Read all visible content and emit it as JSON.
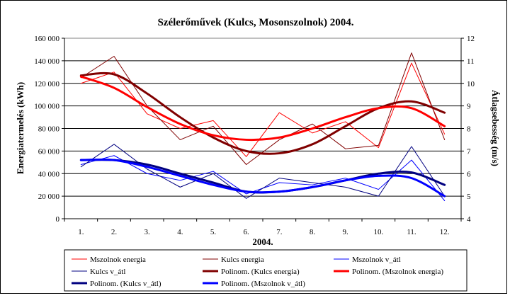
{
  "chart_data": {
    "type": "line",
    "title": "Szélerőművek (Kulcs, Mosonszolnok) 2004.",
    "xlabel": "2004.",
    "ylabel_left": "Energiatermelés (kWh)",
    "ylabel_right": "Átlagsebesség (m/s)",
    "categories": [
      "1.",
      "2.",
      "3.",
      "4.",
      "5.",
      "6.",
      "7.",
      "8.",
      "9.",
      "10.",
      "11.",
      "12."
    ],
    "ylim_left": [
      0,
      160000
    ],
    "yticks_left": [
      "0",
      "20 000",
      "40 000",
      "60 000",
      "80 000",
      "100 000",
      "120 000",
      "140 000",
      "160 000"
    ],
    "ylim_right": [
      4,
      12
    ],
    "yticks_right": [
      "4",
      "5",
      "6",
      "7",
      "8",
      "9",
      "10",
      "11",
      "12"
    ],
    "grid": "horizontal",
    "legend_position": "bottom",
    "series": [
      {
        "name": "Mszolnok energia",
        "axis": "left",
        "color": "#ff0000",
        "width": 1,
        "values": [
          120000,
          130000,
          93000,
          80000,
          87000,
          55000,
          94000,
          76000,
          86000,
          63000,
          138000,
          75000
        ]
      },
      {
        "name": "Kulcs energia",
        "axis": "left",
        "color": "#800000",
        "width": 1,
        "values": [
          125000,
          144000,
          100000,
          70000,
          82000,
          48000,
          70000,
          84000,
          62000,
          65000,
          147000,
          70000
        ]
      },
      {
        "name": "Mszolnok v_átl",
        "axis": "right",
        "color": "#0000ff",
        "width": 1,
        "values": [
          6.4,
          6.8,
          6.0,
          5.7,
          6.1,
          5.1,
          5.6,
          5.5,
          5.8,
          5.3,
          6.6,
          4.8
        ]
      },
      {
        "name": "Kulcs v_átl",
        "axis": "right",
        "color": "#000080",
        "width": 1,
        "values": [
          6.3,
          7.3,
          6.2,
          5.4,
          6.0,
          4.9,
          5.8,
          5.6,
          5.4,
          5.0,
          7.2,
          5.0
        ]
      },
      {
        "name": "Polinom. (Kulcs energia)",
        "axis": "left",
        "color": "#800000",
        "width": 3,
        "values": [
          127000,
          128000,
          111000,
          90000,
          72000,
          60000,
          58000,
          66000,
          82000,
          98000,
          104000,
          94000
        ]
      },
      {
        "name": "Polinom. (Mszolnok energia)",
        "axis": "left",
        "color": "#ff0000",
        "width": 3,
        "values": [
          126000,
          116000,
          99000,
          84000,
          74000,
          70000,
          72000,
          80000,
          90000,
          98000,
          98000,
          82000
        ]
      },
      {
        "name": "Polinom. (Kulcs v_átl)",
        "axis": "right",
        "color": "#000080",
        "width": 3,
        "values": [
          6.6,
          6.6,
          6.4,
          6.0,
          5.6,
          5.2,
          5.2,
          5.4,
          5.7,
          6.0,
          6.05,
          5.5
        ]
      },
      {
        "name": "Polinom. (Mszolnok v_átl)",
        "axis": "right",
        "color": "#0000ff",
        "width": 3,
        "values": [
          6.6,
          6.6,
          6.3,
          5.9,
          5.5,
          5.2,
          5.2,
          5.4,
          5.7,
          5.9,
          5.8,
          5.0
        ]
      }
    ]
  }
}
